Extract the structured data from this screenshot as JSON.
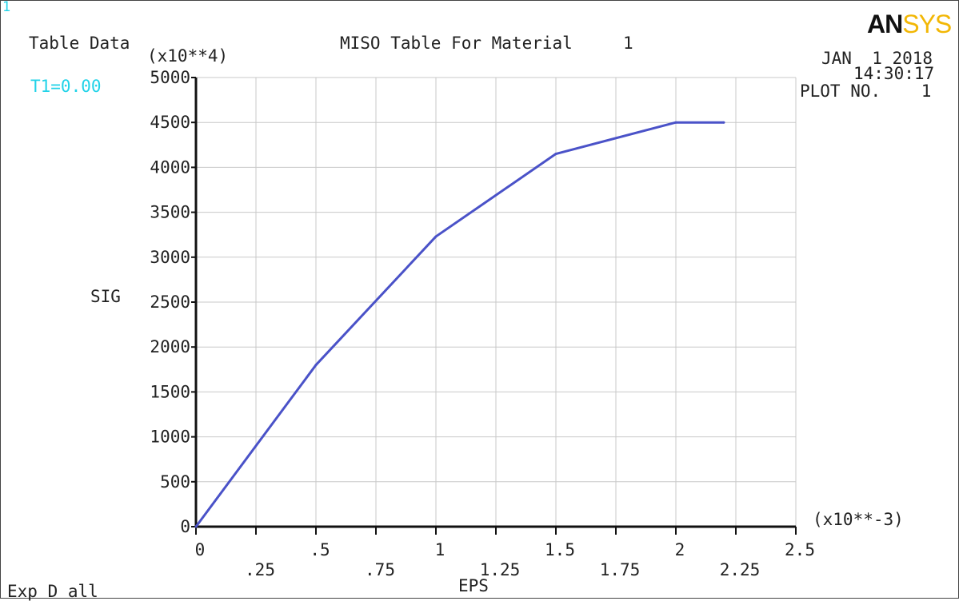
{
  "window_number": "1",
  "header": {
    "left_title": "Table Data",
    "main_title": "MISO Table For Material     1",
    "temperature": "T1=0.00",
    "date": "JAN  1 2018",
    "time": "14:30:17",
    "plot_no": "PLOT NO.    1",
    "logo_main": "AN",
    "logo_accent": "SYS",
    "footer": "Exp D all"
  },
  "colors": {
    "curve": "#4a52c8",
    "accent_text": "#22d3e8",
    "logo_accent": "#f2b705",
    "grid": "#c8c8c8"
  },
  "chart_data": {
    "type": "line",
    "title": "MISO Table For Material     1",
    "xlabel": "EPS",
    "ylabel": "SIG",
    "x_multiplier": "(x10**-3)",
    "y_multiplier": "(x10**4)",
    "xlim": [
      0,
      2.5
    ],
    "ylim": [
      0,
      5000
    ],
    "x_ticks": [
      {
        "v": 0,
        "label": "0",
        "row": 0
      },
      {
        "v": 0.25,
        "label": ".25",
        "row": 1
      },
      {
        "v": 0.5,
        "label": ".5",
        "row": 0
      },
      {
        "v": 0.75,
        "label": ".75",
        "row": 1
      },
      {
        "v": 1,
        "label": "1",
        "row": 0
      },
      {
        "v": 1.25,
        "label": "1.25",
        "row": 1
      },
      {
        "v": 1.5,
        "label": "1.5",
        "row": 0
      },
      {
        "v": 1.75,
        "label": "1.75",
        "row": 1
      },
      {
        "v": 2,
        "label": "2",
        "row": 0
      },
      {
        "v": 2.25,
        "label": "2.25",
        "row": 1
      },
      {
        "v": 2.5,
        "label": "2.5",
        "row": 0
      }
    ],
    "y_ticks": [
      0,
      500,
      1000,
      1500,
      2000,
      2500,
      3000,
      3500,
      4000,
      4500,
      5000
    ],
    "grid": true,
    "series": [
      {
        "x": [
          0,
          0.5,
          1.0,
          1.5,
          2.0,
          2.2
        ],
        "y": [
          0,
          1800,
          3230,
          4150,
          4500,
          4500
        ]
      }
    ]
  }
}
